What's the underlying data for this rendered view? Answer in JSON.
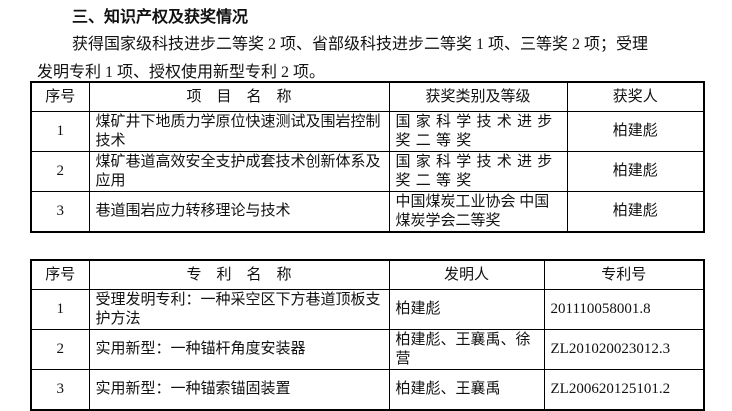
{
  "title": "三、知识产权及获奖情况",
  "paragraph": {
    "line1": "获得国家级科技进步二等奖 2 项、省部级科技进步二等奖 1 项、三等奖 2 项；受理",
    "line2": "发明专利 1 项、授权使用新型专利 2 项。"
  },
  "awards": {
    "headers": [
      "序号",
      "项　目　名　称",
      "获奖类别及等级",
      "获奖人"
    ],
    "rows": [
      {
        "no": "1",
        "name": "煤矿井下地质力学原位快速测试及围岩控制技术",
        "level": "国家科学技术进步奖二等奖",
        "person": "柏建彪"
      },
      {
        "no": "2",
        "name": "煤矿巷道高效安全支护成套技术创新体系及应用",
        "level": "国家科学技术进步奖二等奖",
        "person": "柏建彪"
      },
      {
        "no": "3",
        "name": "巷道围岩应力转移理论与技术",
        "level": "中国煤炭工业协会 中国煤炭学会二等奖",
        "person": "柏建彪"
      }
    ]
  },
  "patents": {
    "headers": [
      "序号",
      "专　利　名　称",
      "发明人",
      "专利号"
    ],
    "rows": [
      {
        "no": "1",
        "name": "受理发明专利：一种采空区下方巷道顶板支护方法",
        "inventor": "柏建彪",
        "number": "201110058001.8"
      },
      {
        "no": "2",
        "name": "实用新型：一种锚杆角度安装器",
        "inventor": "柏建彪、王襄禹、徐　营",
        "number": "ZL201020023012.3"
      },
      {
        "no": "3",
        "name": "实用新型：一种锚索锚固装置",
        "inventor": "柏建彪、王襄禹",
        "number": "ZL200620125101.2"
      }
    ]
  }
}
